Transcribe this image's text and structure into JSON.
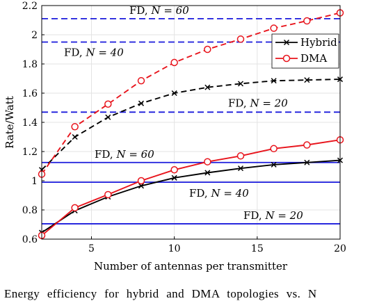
{
  "chart_data": {
    "type": "line",
    "xlabel": "Number of antennas per transmitter",
    "ylabel": "Rate/Watt",
    "xlim": [
      2,
      20
    ],
    "ylim": [
      0.6,
      2.2
    ],
    "xticks": [
      5,
      10,
      15,
      20
    ],
    "yticks": [
      0.6,
      0.8,
      1,
      1.2,
      1.4,
      1.6,
      1.8,
      2,
      2.2
    ],
    "grid": true,
    "legend_position": "top-right",
    "series": [
      {
        "name": "Hybrid",
        "color": "#000000",
        "marker": "x",
        "dash": "solid",
        "x": [
          2,
          4,
          6,
          8,
          10,
          12,
          14,
          16,
          18,
          20
        ],
        "y": [
          0.645,
          0.795,
          0.89,
          0.965,
          1.02,
          1.055,
          1.085,
          1.11,
          1.125,
          1.14
        ]
      },
      {
        "name": "DMA",
        "color": "#e8141c",
        "marker": "o",
        "dash": "solid",
        "x": [
          2,
          4,
          6,
          8,
          10,
          12,
          14,
          16,
          18,
          20
        ],
        "y": [
          0.625,
          0.815,
          0.905,
          1.0,
          1.075,
          1.13,
          1.17,
          1.22,
          1.245,
          1.28
        ]
      },
      {
        "name": "",
        "color": "#000000",
        "marker": "x",
        "dash": "dashed",
        "x": [
          2,
          4,
          6,
          8,
          10,
          12,
          14,
          16,
          18,
          20
        ],
        "y": [
          1.075,
          1.3,
          1.435,
          1.53,
          1.6,
          1.64,
          1.665,
          1.685,
          1.69,
          1.695
        ]
      },
      {
        "name": "",
        "color": "#e8141c",
        "marker": "o",
        "dash": "dashed",
        "x": [
          2,
          4,
          6,
          8,
          10,
          12,
          14,
          16,
          18,
          20
        ],
        "y": [
          1.045,
          1.37,
          1.525,
          1.685,
          1.81,
          1.9,
          1.97,
          2.045,
          2.095,
          2.15
        ]
      }
    ],
    "reference_lines": [
      {
        "label": "FD, N = 60",
        "y": 2.11,
        "color": "#1a1adc",
        "dash": "dashed"
      },
      {
        "label": "FD, N = 40",
        "y": 1.95,
        "color": "#1a1adc",
        "dash": "dashed"
      },
      {
        "label": "FD, N = 20",
        "y": 1.47,
        "color": "#1a1adc",
        "dash": "dashed"
      },
      {
        "label": "FD, N = 60",
        "y": 1.125,
        "color": "#1a1adc",
        "dash": "solid"
      },
      {
        "label": "FD, N = 40",
        "y": 0.99,
        "color": "#1a1adc",
        "dash": "solid"
      },
      {
        "label": "FD, N = 20",
        "y": 0.705,
        "color": "#1a1adc",
        "dash": "solid"
      }
    ]
  },
  "caption": "Energy efficiency for hybrid and DMA topologies vs. N"
}
